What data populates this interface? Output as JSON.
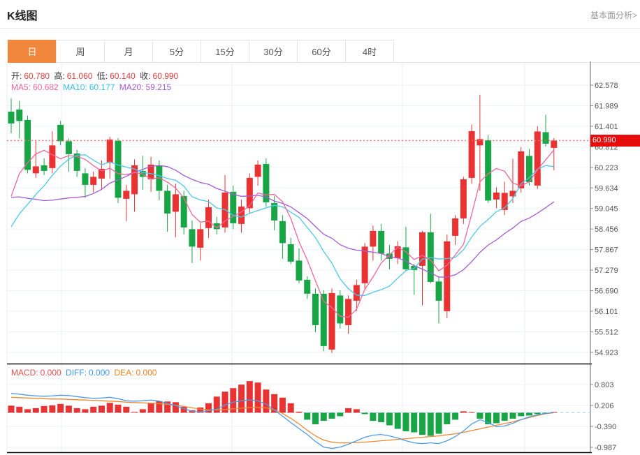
{
  "header": {
    "title": "K线图",
    "link": "基本面分析>"
  },
  "tabs": {
    "items": [
      "日",
      "周",
      "月",
      "5分",
      "15分",
      "30分",
      "60分",
      "4时"
    ],
    "selected_index": 0
  },
  "ohlc": {
    "open_label": "开:",
    "open": "60.780",
    "high_label": "高:",
    "high": "61.060",
    "low_label": "低:",
    "low": "60.140",
    "close_label": "收:",
    "close": "60.990"
  },
  "ma": {
    "ma5_label": "MA5:",
    "ma5": "60.682",
    "ma10_label": "MA10:",
    "ma10": "60.177",
    "ma20_label": "MA20:",
    "ma20": "59.215"
  },
  "macd_legend": {
    "macd_label": "MACD:",
    "macd": "0.000",
    "diff_label": "DIFF:",
    "diff": "0.000",
    "dea_label": "DEA:",
    "dea": "0.000"
  },
  "price_tag": "60.990",
  "colors": {
    "candle_up": "#e93333",
    "candle_down": "#18a546",
    "ma5_line": "#f0679c",
    "ma10_line": "#4cc8e9",
    "ma20_line": "#a45bd2",
    "diff_line": "#4d9be8",
    "dea_line": "#f0882e",
    "hist_up": "#e93333",
    "hist_down": "#18a546",
    "current_price_line": "#f56c6c",
    "price_tag_bg": "#e60c0c",
    "tab_selected_bg": "#f0873c",
    "grid": "#edf2f8",
    "vgrid": "#e8eef5",
    "axis": "#666666",
    "axis_text": "#555555"
  },
  "chart_data": {
    "type": "candlestick",
    "title": "K线图",
    "legend_entries": [
      "MA5",
      "MA10",
      "MA20",
      "MACD",
      "DIFF",
      "DEA"
    ],
    "grid": true,
    "legend_position": "top-left",
    "price_axis_labels": [
      "62.578",
      "61.989",
      "61.401",
      "60.812",
      "60.223",
      "59.634",
      "59.045",
      "58.456",
      "57.867",
      "57.279",
      "56.690",
      "56.101",
      "55.512",
      "54.923"
    ],
    "price_axis_top_value": 62.578,
    "price_axis_step": 0.589,
    "current_price": 60.99,
    "candles_ohlc_order": [
      "open",
      "high",
      "low",
      "close"
    ],
    "candles": [
      [
        61.82,
        62.2,
        61.2,
        61.48
      ],
      [
        61.88,
        62.13,
        61.05,
        61.55
      ],
      [
        61.58,
        61.7,
        60.05,
        60.15
      ],
      [
        60.05,
        61.01,
        59.92,
        60.25
      ],
      [
        60.28,
        60.48,
        60.0,
        60.12
      ],
      [
        60.2,
        61.25,
        60.05,
        60.85
      ],
      [
        61.44,
        61.55,
        60.85,
        60.97
      ],
      [
        60.97,
        61.05,
        60.1,
        60.6
      ],
      [
        60.62,
        60.72,
        59.95,
        60.12
      ],
      [
        60.05,
        60.2,
        59.35,
        59.72
      ],
      [
        59.72,
        60.1,
        59.5,
        59.95
      ],
      [
        59.9,
        60.42,
        59.58,
        60.18
      ],
      [
        60.35,
        61.1,
        59.9,
        61.02
      ],
      [
        60.98,
        61.06,
        59.2,
        59.35
      ],
      [
        59.32,
        59.72,
        58.68,
        59.55
      ],
      [
        59.45,
        60.45,
        58.95,
        60.28
      ],
      [
        60.12,
        60.55,
        59.58,
        59.95
      ],
      [
        59.88,
        60.52,
        59.52,
        60.3
      ],
      [
        60.28,
        60.42,
        59.28,
        59.55
      ],
      [
        59.55,
        59.72,
        58.38,
        58.9
      ],
      [
        58.95,
        59.75,
        58.22,
        59.45
      ],
      [
        59.4,
        59.55,
        58.3,
        58.5
      ],
      [
        58.45,
        58.7,
        57.48,
        57.95
      ],
      [
        57.92,
        58.62,
        57.55,
        58.45
      ],
      [
        58.48,
        59.3,
        58.2,
        59.08
      ],
      [
        58.62,
        58.8,
        58.3,
        58.45
      ],
      [
        58.5,
        60.0,
        58.35,
        59.5
      ],
      [
        59.52,
        59.7,
        58.45,
        58.62
      ],
      [
        58.6,
        59.3,
        58.35,
        59.1
      ],
      [
        59.05,
        60.05,
        58.9,
        59.92
      ],
      [
        59.95,
        60.42,
        59.7,
        60.3
      ],
      [
        60.32,
        60.48,
        59.1,
        59.22
      ],
      [
        59.2,
        59.4,
        58.42,
        58.7
      ],
      [
        58.68,
        58.85,
        57.6,
        58.05
      ],
      [
        58.02,
        58.2,
        57.45,
        57.52
      ],
      [
        57.55,
        57.9,
        56.9,
        56.98
      ],
      [
        57.0,
        57.1,
        56.45,
        56.6
      ],
      [
        56.6,
        56.75,
        55.5,
        55.7
      ],
      [
        56.6,
        56.7,
        54.95,
        55.1
      ],
      [
        55.0,
        56.75,
        54.9,
        56.62
      ],
      [
        56.55,
        56.7,
        55.6,
        55.75
      ],
      [
        55.7,
        56.55,
        55.45,
        56.45
      ],
      [
        56.4,
        57.0,
        56.1,
        56.85
      ],
      [
        56.9,
        58.05,
        56.7,
        57.95
      ],
      [
        57.95,
        58.55,
        57.55,
        58.4
      ],
      [
        58.4,
        58.6,
        57.55,
        57.75
      ],
      [
        57.75,
        58.0,
        57.3,
        57.6
      ],
      [
        57.62,
        58.1,
        57.45,
        57.96
      ],
      [
        57.93,
        58.52,
        57.25,
        57.3
      ],
      [
        57.4,
        57.45,
        56.57,
        57.28
      ],
      [
        57.4,
        58.4,
        56.27,
        58.36
      ],
      [
        58.36,
        58.89,
        56.9,
        56.94
      ],
      [
        56.95,
        57.1,
        55.75,
        56.4
      ],
      [
        56.1,
        58.3,
        55.9,
        58.1
      ],
      [
        58.26,
        58.85,
        58.0,
        58.76
      ],
      [
        58.76,
        59.95,
        58.6,
        59.88
      ],
      [
        59.92,
        61.45,
        59.75,
        61.26
      ],
      [
        60.85,
        62.3,
        59.55,
        61.03
      ],
      [
        61.0,
        61.15,
        59.2,
        59.27
      ],
      [
        59.3,
        59.65,
        59.05,
        59.5
      ],
      [
        59.0,
        59.81,
        58.85,
        59.49
      ],
      [
        59.39,
        60.47,
        59.2,
        59.55
      ],
      [
        59.62,
        60.8,
        59.5,
        60.68
      ],
      [
        60.55,
        60.75,
        59.7,
        59.8
      ],
      [
        59.7,
        61.4,
        59.6,
        61.25
      ],
      [
        61.23,
        61.73,
        60.82,
        60.9
      ],
      [
        60.78,
        61.06,
        60.14,
        60.99
      ]
    ],
    "ma_periods": [
      5,
      10,
      20
    ],
    "ma_seed": [
      61.5,
      61.3,
      61.0,
      60.8,
      60.9,
      60.6,
      60.3,
      60.0,
      59.7,
      59.3,
      58.2,
      57.8,
      57.5,
      57.4,
      57.6,
      57.9,
      58.3,
      58.6,
      59.0,
      59.6
    ],
    "macd": {
      "axis_labels": [
        "0.803",
        "0.206",
        "-0.390",
        "-0.987"
      ],
      "axis_values": [
        0.803,
        0.206,
        -0.39,
        -0.987
      ],
      "hist": [
        0.2,
        0.17,
        0.1,
        0.13,
        0.19,
        0.21,
        0.25,
        0.2,
        0.13,
        0.1,
        0.17,
        0.2,
        0.28,
        0.23,
        0.17,
        0.02,
        0.1,
        0.27,
        0.33,
        0.32,
        0.3,
        0.17,
        0.07,
        0.15,
        0.27,
        0.46,
        0.6,
        0.7,
        0.8,
        0.9,
        0.86,
        0.66,
        0.53,
        0.43,
        0.27,
        0.03,
        -0.2,
        -0.33,
        -0.23,
        -0.17,
        -0.1,
        0.13,
        0.1,
        -0.04,
        -0.23,
        -0.27,
        -0.36,
        -0.46,
        -0.53,
        -0.56,
        -0.63,
        -0.66,
        -0.6,
        -0.33,
        -0.2,
        0.04,
        0.02,
        -0.17,
        -0.33,
        -0.3,
        -0.23,
        -0.17,
        -0.1,
        -0.08,
        -0.04,
        -0.02,
        0.0
      ],
      "diff": [
        0.55,
        0.53,
        0.5,
        0.48,
        0.47,
        0.48,
        0.5,
        0.49,
        0.46,
        0.43,
        0.41,
        0.42,
        0.44,
        0.4,
        0.34,
        0.33,
        0.34,
        0.36,
        0.33,
        0.26,
        0.2,
        0.12,
        0.04,
        0.02,
        0.06,
        0.1,
        0.22,
        0.3,
        0.34,
        0.36,
        0.34,
        0.24,
        0.08,
        -0.1,
        -0.28,
        -0.45,
        -0.62,
        -0.82,
        -0.98,
        -1.02,
        -0.98,
        -0.9,
        -0.8,
        -0.7,
        -0.64,
        -0.62,
        -0.66,
        -0.72,
        -0.8,
        -0.86,
        -0.88,
        -0.86,
        -0.88,
        -0.8,
        -0.68,
        -0.52,
        -0.32,
        -0.2,
        -0.28,
        -0.4,
        -0.38,
        -0.3,
        -0.2,
        -0.12,
        -0.06,
        -0.02,
        0.0
      ],
      "dea": [
        0.44,
        0.43,
        0.42,
        0.41,
        0.4,
        0.39,
        0.39,
        0.38,
        0.37,
        0.36,
        0.35,
        0.34,
        0.33,
        0.32,
        0.3,
        0.29,
        0.28,
        0.27,
        0.26,
        0.24,
        0.21,
        0.18,
        0.14,
        0.1,
        0.08,
        0.08,
        0.09,
        0.11,
        0.13,
        0.15,
        0.16,
        0.14,
        0.08,
        -0.02,
        -0.16,
        -0.32,
        -0.5,
        -0.66,
        -0.78,
        -0.84,
        -0.86,
        -0.86,
        -0.85,
        -0.84,
        -0.82,
        -0.8,
        -0.78,
        -0.76,
        -0.74,
        -0.72,
        -0.7,
        -0.68,
        -0.66,
        -0.63,
        -0.6,
        -0.56,
        -0.51,
        -0.46,
        -0.41,
        -0.36,
        -0.31,
        -0.26,
        -0.2,
        -0.14,
        -0.08,
        -0.03,
        0.0
      ]
    }
  }
}
